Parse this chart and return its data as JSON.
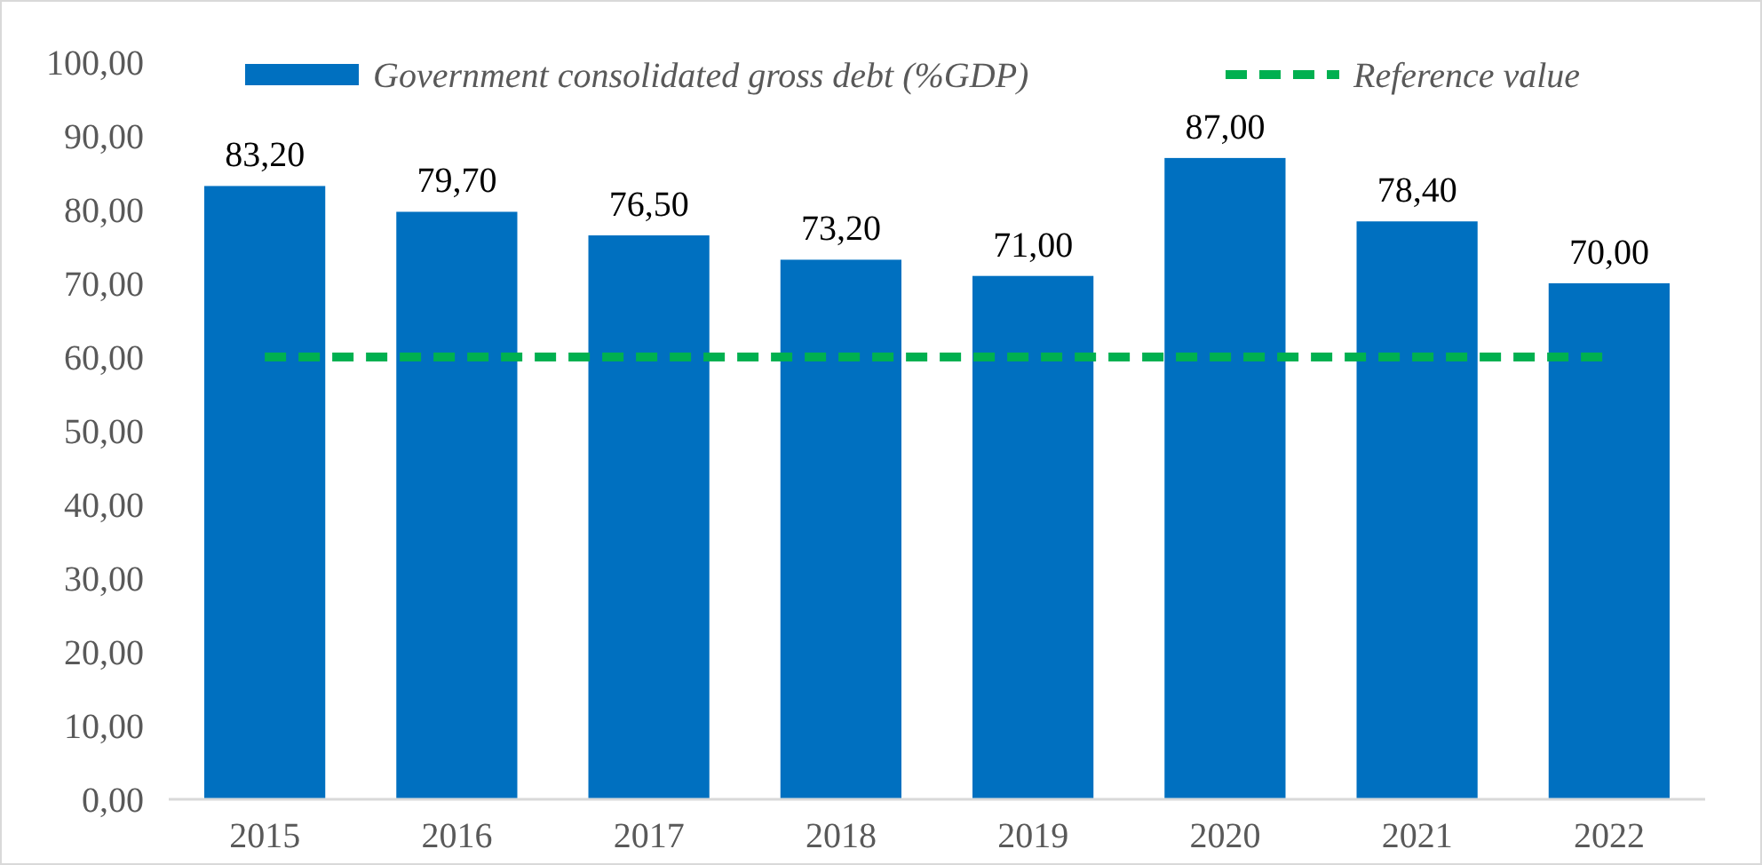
{
  "chart_data": {
    "type": "bar",
    "categories": [
      "2015",
      "2016",
      "2017",
      "2018",
      "2019",
      "2020",
      "2021",
      "2022"
    ],
    "series": [
      {
        "name": "Government consolidated gross debt (%GDP)",
        "color": "#0070c0",
        "values": [
          83.2,
          79.7,
          76.5,
          73.2,
          71.0,
          87.0,
          78.4,
          70.0
        ],
        "value_labels": [
          "83,20",
          "79,70",
          "76,50",
          "73,20",
          "71,00",
          "87,00",
          "78,40",
          "70,00"
        ]
      },
      {
        "name": "Reference value",
        "type": "line",
        "color": "#00b050",
        "line_style": "dashed",
        "values": [
          60,
          60,
          60,
          60,
          60,
          60,
          60,
          60
        ]
      }
    ],
    "ylim": [
      0,
      100
    ],
    "yticks": [
      {
        "value": 0,
        "label": "0,00"
      },
      {
        "value": 10,
        "label": "10,00"
      },
      {
        "value": 20,
        "label": "20,00"
      },
      {
        "value": 30,
        "label": "30,00"
      },
      {
        "value": 40,
        "label": "40,00"
      },
      {
        "value": 50,
        "label": "50,00"
      },
      {
        "value": 60,
        "label": "60,00"
      },
      {
        "value": 70,
        "label": "70,00"
      },
      {
        "value": 80,
        "label": "80,00"
      },
      {
        "value": 90,
        "label": "90,00"
      },
      {
        "value": 100,
        "label": "100,00"
      }
    ],
    "grid": false,
    "legend": "top"
  }
}
